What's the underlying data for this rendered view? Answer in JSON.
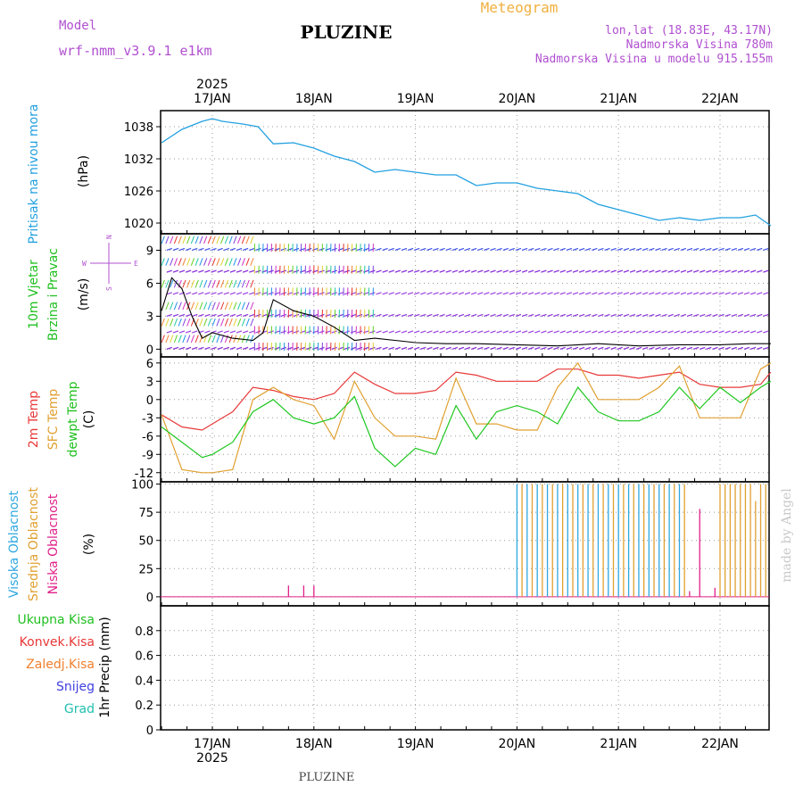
{
  "header": {
    "model_label": "Model",
    "model_name": "wrf-nmm_v3.9.1 e1km",
    "station_title": "PLUZINE",
    "meteogram_label": "Meteogram",
    "lonlat": "lon,lat (18.83E, 43.17N)",
    "altitude": "Nadmorska Visina 780m",
    "model_altitude": "Nadmorska Visina u modelu 915.155m",
    "footer_title": "PLUZINE",
    "watermark": "made by Angel"
  },
  "time_axis": {
    "year": "2025",
    "days": [
      "17JAN",
      "18JAN",
      "19JAN",
      "20JAN",
      "21JAN",
      "22JAN"
    ]
  },
  "panels": {
    "pressure": {
      "label": "Pritisak na nivou mora",
      "unit": "(hPa)",
      "ticks": [
        "1038",
        "1032",
        "1026",
        "1020"
      ]
    },
    "wind": {
      "label1": "10m Vjetar",
      "label2": "Brzina i Pravac",
      "unit": "(m/s)",
      "ticks": [
        "9",
        "6",
        "3",
        "0"
      ],
      "compass_n": "N",
      "compass_e": "E",
      "compass_w": "W",
      "compass_s": "S"
    },
    "temp": {
      "label1": "2m Temp",
      "label2": "SFC Temp",
      "label3": "dewpt Temp",
      "unit": "(C)",
      "ticks": [
        "6",
        "3",
        "0",
        "-3",
        "-6",
        "-9",
        "-12"
      ]
    },
    "cloud": {
      "label1": "Visoka Oblacnost",
      "label2": "Srednja Oblacnost",
      "label3": "Niska Oblacnost",
      "unit": "(%)",
      "ticks": [
        "100",
        "75",
        "50",
        "25",
        "0"
      ]
    },
    "precip": {
      "legend": [
        "Ukupna Kisa",
        "Konvek.Kisa",
        "Zaledj.Kisa",
        "Snijeg",
        "Grad"
      ],
      "unit": "1hr Precip (mm)",
      "ticks": [
        "0.8",
        "0.6",
        "0.4",
        "0.2",
        "0"
      ]
    }
  },
  "colors": {
    "pressure": "#22a0e0",
    "t2m": "#e83838",
    "sfc": "#e0a030",
    "dew": "#20c820",
    "high_cloud": "#30a8e0",
    "mid_cloud": "#e0a030",
    "low_cloud": "#e02088",
    "purple_text": "#b050d0",
    "orange_text": "#f0b040"
  },
  "chart_data": [
    {
      "type": "line",
      "title": "Pritisak na nivou mora",
      "ylabel": "(hPa)",
      "ylim": [
        1018,
        1041
      ],
      "x": [
        16.5,
        16.7,
        16.9,
        17.0,
        17.1,
        17.3,
        17.45,
        17.6,
        17.8,
        18.0,
        18.2,
        18.4,
        18.6,
        18.8,
        19.0,
        19.2,
        19.4,
        19.6,
        19.8,
        20.0,
        20.2,
        20.4,
        20.6,
        20.8,
        21.0,
        21.2,
        21.4,
        21.6,
        21.8,
        22.0,
        22.2,
        22.35,
        22.5
      ],
      "series": [
        {
          "name": "Pritisak na nivou mora",
          "values": [
            1035,
            1037.5,
            1039,
            1039.5,
            1039,
            1038.5,
            1038,
            1034.8,
            1035,
            1034,
            1032.5,
            1031.5,
            1029.5,
            1030,
            1029.5,
            1029,
            1029,
            1027,
            1027.5,
            1027.5,
            1026.5,
            1026,
            1025.5,
            1023.5,
            1022.5,
            1021.5,
            1020.5,
            1021,
            1020.5,
            1021,
            1021,
            1021.5,
            1019.5
          ]
        }
      ]
    },
    {
      "type": "line",
      "title": "10m Vjetar Brzina i Pravac",
      "ylabel": "(m/s)",
      "ylim": [
        -0.7,
        10.5
      ],
      "x": [
        16.5,
        16.6,
        16.7,
        16.8,
        16.9,
        17.0,
        17.2,
        17.4,
        17.5,
        17.6,
        17.8,
        18.0,
        18.2,
        18.4,
        18.6,
        18.8,
        19.0,
        19.3,
        19.6,
        20.0,
        20.4,
        20.8,
        21.2,
        21.6,
        22.0,
        22.3,
        22.5
      ],
      "series": [
        {
          "name": "speed",
          "values": [
            3.5,
            6.5,
            5.5,
            3.0,
            1.0,
            1.5,
            1.0,
            0.8,
            1.5,
            4.5,
            3.5,
            3.0,
            2.0,
            0.8,
            1.0,
            0.8,
            0.6,
            0.5,
            0.5,
            0.4,
            0.3,
            0.5,
            0.3,
            0.4,
            0.4,
            0.5,
            0.5
          ]
        }
      ]
    },
    {
      "type": "line",
      "title": "2m Temp / SFC Temp / dewpt Temp",
      "ylabel": "(C)",
      "ylim": [
        -13.5,
        7
      ],
      "x": [
        16.5,
        16.7,
        16.9,
        17.0,
        17.2,
        17.4,
        17.6,
        17.8,
        18.0,
        18.2,
        18.4,
        18.6,
        18.8,
        19.0,
        19.2,
        19.4,
        19.6,
        19.8,
        20.0,
        20.2,
        20.4,
        20.6,
        20.8,
        21.0,
        21.2,
        21.4,
        21.6,
        21.8,
        22.0,
        22.2,
        22.4,
        22.5
      ],
      "series": [
        {
          "name": "2m Temp",
          "values": [
            -2.5,
            -4.5,
            -5.0,
            -4.0,
            -2.0,
            2.0,
            1.5,
            0.5,
            0.0,
            1.0,
            4.5,
            2.5,
            1.0,
            1.0,
            1.5,
            4.5,
            4.0,
            3.0,
            3.0,
            3.0,
            5.0,
            5.0,
            4.0,
            4.0,
            3.5,
            4.0,
            4.5,
            2.5,
            2.0,
            2.0,
            2.5,
            4.5
          ]
        },
        {
          "name": "SFC Temp",
          "values": [
            -2.5,
            -11.5,
            -12.0,
            -12.0,
            -11.5,
            0.0,
            2.0,
            0.0,
            -1.0,
            -6.5,
            3.0,
            -3.0,
            -6.0,
            -6.0,
            -6.5,
            3.5,
            -4.0,
            -4.0,
            -5.0,
            -5.0,
            2.0,
            6.0,
            0.0,
            0.0,
            0.0,
            2.0,
            5.5,
            -3.0,
            -3.0,
            -3.0,
            5.0,
            6.0
          ]
        },
        {
          "name": "dewpt Temp",
          "values": [
            -4.5,
            -7.0,
            -9.5,
            -9.0,
            -7.0,
            -2.0,
            0.0,
            -3.0,
            -4.0,
            -3.0,
            0.5,
            -8.0,
            -11.0,
            -8.0,
            -9.0,
            -1.0,
            -6.5,
            -2.0,
            -1.0,
            -2.0,
            -4.0,
            2.0,
            -2.0,
            -3.5,
            -3.5,
            -2.0,
            2.0,
            -1.5,
            2.0,
            -0.5,
            2.0,
            3.0
          ]
        }
      ]
    },
    {
      "type": "bar",
      "title": "Visoka / Srednja / Niska Oblacnost",
      "ylabel": "(%)",
      "ylim": [
        -8,
        102
      ],
      "series": [
        {
          "name": "Visoka Oblacnost",
          "x": [
            20.0,
            20.1,
            20.2,
            20.3,
            20.4,
            20.5,
            20.6,
            20.7,
            20.8,
            20.9,
            21.0,
            21.1,
            21.2,
            21.3,
            21.4,
            21.5,
            21.6
          ],
          "values": [
            100,
            100,
            100,
            100,
            100,
            100,
            100,
            100,
            100,
            100,
            100,
            100,
            100,
            100,
            100,
            100,
            100
          ]
        },
        {
          "name": "Srednja Oblacnost",
          "x": [
            20.05,
            20.15,
            20.25,
            20.35,
            20.45,
            20.55,
            20.65,
            20.75,
            20.85,
            20.95,
            21.05,
            21.15,
            21.25,
            21.35,
            21.45,
            21.55,
            21.65,
            22.0,
            22.05,
            22.1,
            22.15,
            22.2,
            22.25,
            22.3,
            22.35,
            22.4,
            22.45
          ],
          "values": [
            100,
            100,
            100,
            100,
            100,
            100,
            100,
            100,
            100,
            100,
            100,
            100,
            100,
            100,
            100,
            100,
            100,
            100,
            100,
            100,
            100,
            100,
            100,
            100,
            85,
            100,
            100
          ]
        },
        {
          "name": "Niska Oblacnost",
          "x": [
            17.75,
            17.9,
            18.0,
            21.7,
            21.8,
            21.95
          ],
          "values": [
            10,
            10,
            10,
            5,
            78,
            8
          ]
        }
      ]
    },
    {
      "type": "bar",
      "title": "1hr Precip",
      "ylabel": "1hr Precip (mm)",
      "ylim": [
        0,
        1.0
      ],
      "series": [
        {
          "name": "Ukupna Kisa",
          "x": [],
          "values": []
        }
      ]
    }
  ]
}
